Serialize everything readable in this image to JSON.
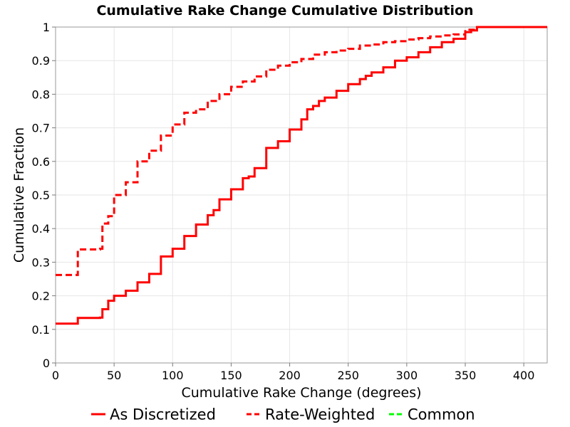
{
  "chart_data": {
    "type": "line",
    "title": "Cumulative Rake Change Cumulative Distribution",
    "xlabel": "Cumulative Rake Change (degrees)",
    "ylabel": "Cumulative Fraction",
    "xlim": [
      0,
      420
    ],
    "ylim": [
      0,
      1
    ],
    "x_ticks": [
      0,
      50,
      100,
      150,
      200,
      250,
      300,
      350,
      400
    ],
    "y_ticks": [
      0,
      0.1,
      0.2,
      0.3,
      0.4,
      0.5,
      0.6,
      0.7,
      0.8,
      0.9,
      1
    ],
    "x_tick_labels": [
      "0",
      "50",
      "100",
      "150",
      "200",
      "250",
      "300",
      "350",
      "400"
    ],
    "y_tick_labels": [
      "0",
      "0.1",
      "0.2",
      "0.3",
      "0.4",
      "0.5",
      "0.6",
      "0.7",
      "0.8",
      "0.9",
      "1"
    ],
    "grid": true,
    "legend_position": "bottom",
    "series": [
      {
        "name": "As Discretized",
        "color": "#ff0000",
        "dash": "solid",
        "x": [
          0,
          18,
          19,
          38,
          40,
          45,
          50,
          60,
          70,
          80,
          90,
          100,
          110,
          120,
          130,
          135,
          140,
          150,
          160,
          165,
          170,
          180,
          190,
          200,
          210,
          215,
          220,
          225,
          230,
          240,
          250,
          260,
          265,
          270,
          280,
          290,
          300,
          310,
          320,
          330,
          340,
          350,
          355,
          360,
          420
        ],
        "y": [
          0.117,
          0.117,
          0.134,
          0.135,
          0.16,
          0.185,
          0.2,
          0.215,
          0.24,
          0.265,
          0.317,
          0.34,
          0.378,
          0.412,
          0.44,
          0.455,
          0.487,
          0.517,
          0.55,
          0.555,
          0.58,
          0.64,
          0.66,
          0.695,
          0.725,
          0.755,
          0.765,
          0.78,
          0.79,
          0.81,
          0.83,
          0.845,
          0.855,
          0.865,
          0.88,
          0.9,
          0.91,
          0.925,
          0.94,
          0.955,
          0.965,
          0.985,
          0.99,
          1.0,
          1.0
        ]
      },
      {
        "name": "Rate-Weighted",
        "color": "#ff0000",
        "dash": "dashed",
        "x": [
          0,
          18,
          19,
          38,
          40,
          45,
          50,
          60,
          70,
          80,
          90,
          100,
          110,
          120,
          130,
          140,
          150,
          160,
          170,
          180,
          190,
          200,
          210,
          220,
          230,
          240,
          250,
          260,
          270,
          280,
          290,
          300,
          310,
          320,
          330,
          340,
          350,
          360,
          420
        ],
        "y": [
          0.262,
          0.262,
          0.338,
          0.34,
          0.415,
          0.437,
          0.5,
          0.538,
          0.6,
          0.632,
          0.677,
          0.71,
          0.745,
          0.755,
          0.78,
          0.8,
          0.822,
          0.838,
          0.853,
          0.873,
          0.885,
          0.895,
          0.905,
          0.918,
          0.925,
          0.93,
          0.935,
          0.945,
          0.948,
          0.955,
          0.958,
          0.963,
          0.967,
          0.972,
          0.975,
          0.978,
          0.992,
          1.0,
          1.0
        ]
      },
      {
        "name": "Common",
        "color": "#00ff00",
        "dash": "dashed",
        "x": [],
        "y": []
      }
    ]
  }
}
